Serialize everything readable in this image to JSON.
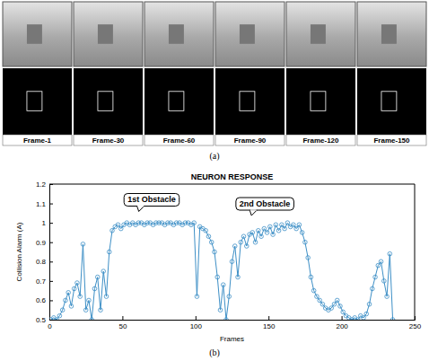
{
  "chart_data": {
    "type": "line",
    "title": "NEURON RESPONSE",
    "x_label": "Frames",
    "y_label": "Collision Alarm (A)",
    "annotations": [
      "1st Obstacle",
      "2nd Obstacle"
    ],
    "color": "#3d8fc6",
    "marker": "circle",
    "line_style": "solid",
    "grid": false,
    "xlim": [
      0,
      250
    ],
    "xticks": [
      0,
      50,
      100,
      150,
      200,
      250
    ],
    "ylim": [
      0.5,
      1.2
    ],
    "yticks": [
      0.5,
      0.6,
      0.7,
      0.8,
      0.9,
      1,
      1.1,
      1.2
    ],
    "x": [
      1,
      3,
      5,
      7,
      9,
      11,
      13,
      15,
      17,
      19,
      21,
      23,
      25,
      27,
      29,
      31,
      33,
      35,
      37,
      39,
      41,
      43,
      45,
      47,
      49,
      51,
      53,
      55,
      57,
      59,
      61,
      63,
      65,
      67,
      69,
      71,
      73,
      75,
      77,
      79,
      81,
      83,
      85,
      87,
      89,
      91,
      93,
      95,
      97,
      99,
      101,
      103,
      105,
      107,
      109,
      111,
      113,
      115,
      117,
      119,
      121,
      123,
      125,
      127,
      129,
      131,
      133,
      135,
      137,
      139,
      141,
      143,
      145,
      147,
      149,
      151,
      153,
      155,
      157,
      159,
      161,
      163,
      165,
      167,
      169,
      171,
      173,
      175,
      177,
      179,
      181,
      183,
      185,
      187,
      189,
      191,
      193,
      195,
      197,
      199,
      201,
      203,
      205,
      207,
      209,
      211,
      213,
      215,
      217,
      219,
      221,
      223,
      225,
      227,
      229,
      231,
      233,
      235
    ],
    "values": [
      0.5,
      0.51,
      0.5,
      0.52,
      0.55,
      0.6,
      0.64,
      0.57,
      0.66,
      0.69,
      0.62,
      0.89,
      0.55,
      0.6,
      0.5,
      0.66,
      0.72,
      0.55,
      0.75,
      0.62,
      0.85,
      0.96,
      0.98,
      0.99,
      0.97,
      0.99,
      1.0,
      0.99,
      1.0,
      0.99,
      1.0,
      1.0,
      0.99,
      1.0,
      1.0,
      0.99,
      1.0,
      1.0,
      1.0,
      0.99,
      1.0,
      1.0,
      0.99,
      1.0,
      1.0,
      0.99,
      1.0,
      1.0,
      0.99,
      1.0,
      0.62,
      0.98,
      0.97,
      0.96,
      0.93,
      0.9,
      0.85,
      0.72,
      0.55,
      0.68,
      0.5,
      0.62,
      0.8,
      0.88,
      0.72,
      0.9,
      0.93,
      0.88,
      0.94,
      0.95,
      0.9,
      0.96,
      0.93,
      0.97,
      0.95,
      0.98,
      0.94,
      0.99,
      0.96,
      0.99,
      0.97,
      1.0,
      0.98,
      0.99,
      0.97,
      0.99,
      0.95,
      0.9,
      0.82,
      0.72,
      0.65,
      0.62,
      0.6,
      0.58,
      0.56,
      0.55,
      0.56,
      0.58,
      0.6,
      0.57,
      0.54,
      0.52,
      0.51,
      0.5,
      0.51,
      0.5,
      0.52,
      0.51,
      0.53,
      0.58,
      0.66,
      0.72,
      0.78,
      0.8,
      0.7,
      0.62,
      0.84,
      0.5
    ]
  },
  "figure": {
    "panel_a": {
      "label": "(a)",
      "frames": [
        "Frame-1",
        "Frame-30",
        "Frame-60",
        "Frame-90",
        "Frame-120",
        "Frame-150"
      ]
    },
    "panel_b": {
      "label": "(b)"
    }
  }
}
